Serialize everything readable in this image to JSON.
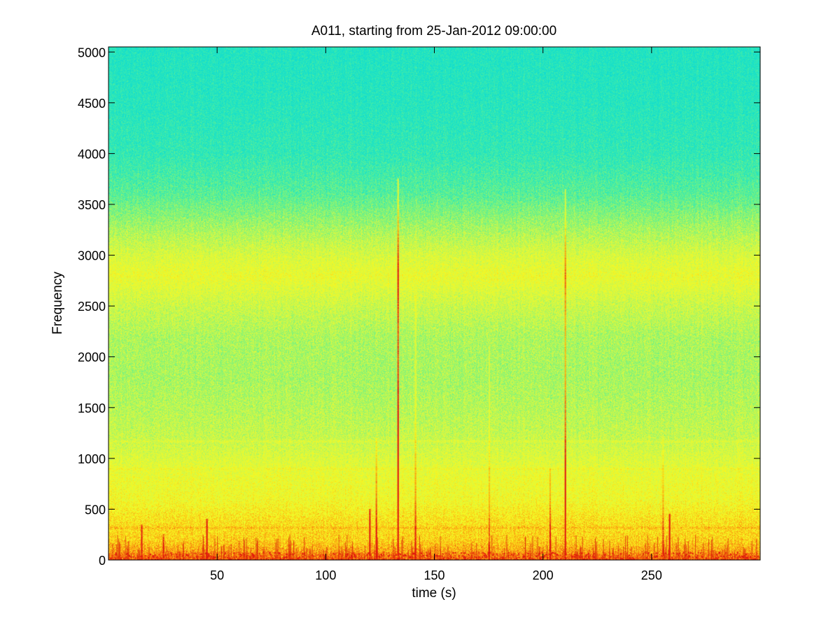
{
  "chart_data": {
    "type": "heatmap",
    "title": "A011, starting from 25-Jan-2012 09:00:00",
    "xlabel": "time (s)",
    "ylabel": "Frequency",
    "xlim": [
      0,
      300
    ],
    "ylim": [
      0,
      5050
    ],
    "x_ticks": [
      50,
      100,
      150,
      200,
      250
    ],
    "x_tick_labels": [
      "50",
      "100",
      "150",
      "200",
      "250"
    ],
    "y_ticks": [
      0,
      500,
      1000,
      1500,
      2000,
      2500,
      3000,
      3500,
      4000,
      4500,
      5000
    ],
    "y_tick_labels": [
      "0",
      "500",
      "1000",
      "1500",
      "2000",
      "2500",
      "3000",
      "3500",
      "4000",
      "4500",
      "5000"
    ],
    "grid": false,
    "colormap": "jet",
    "colormap_segment": [
      "#10dcd0",
      "#2ee8b8",
      "#7cf37c",
      "#d2f848",
      "#f8f820",
      "#fca010",
      "#e01010"
    ],
    "intensity_profile": [
      {
        "frequency": 0,
        "level": 0.92
      },
      {
        "frequency": 80,
        "level": 0.82
      },
      {
        "frequency": 200,
        "level": 0.74
      },
      {
        "frequency": 400,
        "level": 0.7
      },
      {
        "frequency": 600,
        "level": 0.62
      },
      {
        "frequency": 800,
        "level": 0.6
      },
      {
        "frequency": 1000,
        "level": 0.55
      },
      {
        "frequency": 1200,
        "level": 0.49
      },
      {
        "frequency": 1500,
        "level": 0.45
      },
      {
        "frequency": 1800,
        "level": 0.42
      },
      {
        "frequency": 2200,
        "level": 0.43
      },
      {
        "frequency": 2500,
        "level": 0.5
      },
      {
        "frequency": 2800,
        "level": 0.6
      },
      {
        "frequency": 3000,
        "level": 0.54
      },
      {
        "frequency": 3300,
        "level": 0.4
      },
      {
        "frequency": 3600,
        "level": 0.26
      },
      {
        "frequency": 4000,
        "level": 0.16
      },
      {
        "frequency": 4500,
        "level": 0.12
      },
      {
        "frequency": 5050,
        "level": 0.1
      }
    ],
    "bands": [
      {
        "frequency": 1170,
        "level": 0.56
      },
      {
        "frequency": 900,
        "level": 0.63
      },
      {
        "frequency": 720,
        "level": 0.6
      },
      {
        "frequency": 320,
        "level": 0.78
      }
    ],
    "transients": [
      {
        "time": 133,
        "max_frequency": 3750,
        "strength": 0.95
      },
      {
        "time": 210,
        "max_frequency": 3650,
        "strength": 0.7
      },
      {
        "time": 141,
        "max_frequency": 2600,
        "strength": 0.35
      },
      {
        "time": 45,
        "max_frequency": 400,
        "strength": 0.85
      },
      {
        "time": 120,
        "max_frequency": 500,
        "strength": 0.8
      },
      {
        "time": 123,
        "max_frequency": 1200,
        "strength": 0.45
      },
      {
        "time": 175,
        "max_frequency": 2100,
        "strength": 0.25
      },
      {
        "time": 203,
        "max_frequency": 900,
        "strength": 0.4
      },
      {
        "time": 258,
        "max_frequency": 450,
        "strength": 0.8
      },
      {
        "time": 255,
        "max_frequency": 1200,
        "strength": 0.3
      },
      {
        "time": 15,
        "max_frequency": 350,
        "strength": 0.6
      },
      {
        "time": 25,
        "max_frequency": 250,
        "strength": 0.5
      }
    ]
  }
}
